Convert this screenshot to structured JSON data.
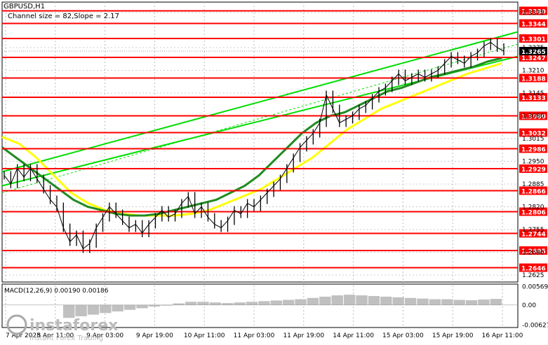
{
  "chart_data": {
    "type": "line",
    "title": "GBPUSD,H1",
    "subtitle": "Channel size = 82,Slope = 2.17",
    "x_tick_labels": [
      "7 Apr 2025",
      "8 Apr 11:00",
      "9 Apr 03:00",
      "9 Apr 19:00",
      "10 Apr 11:00",
      "11 Apr 03:00",
      "11 Apr 19:00",
      "14 Apr 11:00",
      "15 Apr 03:00",
      "15 Apr 19:00",
      "16 Apr 11:00"
    ],
    "y_tick_labels": [
      "1.3375",
      "1.3275",
      "1.3210",
      "1.3145",
      "1.3080",
      "1.3015",
      "1.2950",
      "1.2885",
      "1.2820",
      "1.2755",
      "1.2690",
      "1.2625"
    ],
    "ylim": [
      1.2605,
      1.3405
    ],
    "level_lines": [
      1.338,
      1.3344,
      1.3301,
      1.3247,
      1.3188,
      1.3133,
      1.308,
      1.3032,
      1.2986,
      1.2929,
      1.2866,
      1.2806,
      1.2744,
      1.2695,
      1.2646
    ],
    "level_labels": [
      "1.3380",
      "1.3344",
      "1.3301",
      "1.3247",
      "1.3188",
      "1.3133",
      "1.3080",
      "1.3032",
      "1.2986",
      "1.2929",
      "1.2866",
      "1.2806",
      "1.2744",
      "1.2695",
      "1.2646"
    ],
    "current_price": 1.3265,
    "current_price_label": "1.3265",
    "price_series": [
      1.291,
      1.2885,
      1.293,
      1.2905,
      1.293,
      1.29,
      1.287,
      1.284,
      1.282,
      1.276,
      1.272,
      1.274,
      1.27,
      1.2715,
      1.276,
      1.279,
      1.282,
      1.28,
      1.278,
      1.276,
      1.277,
      1.2745,
      1.277,
      1.279,
      1.281,
      1.279,
      1.28,
      1.283,
      1.285,
      1.28,
      1.282,
      1.279,
      1.277,
      1.276,
      1.278,
      1.281,
      1.28,
      1.283,
      1.282,
      1.284,
      1.286,
      1.288,
      1.29,
      1.293,
      1.296,
      1.299,
      1.301,
      1.303,
      1.306,
      1.314,
      1.31,
      1.306,
      1.307,
      1.308,
      1.31,
      1.311,
      1.313,
      1.315,
      1.316,
      1.318,
      1.32,
      1.318,
      1.319,
      1.32,
      1.319,
      1.32,
      1.321,
      1.323,
      1.325,
      1.324,
      1.323,
      1.325,
      1.326,
      1.328,
      1.329,
      1.3275,
      1.3265
    ],
    "ma_green": [
      1.299,
      1.296,
      1.293,
      1.29,
      1.287,
      1.284,
      1.282,
      1.281,
      1.28,
      1.2795,
      1.2795,
      1.28,
      1.281,
      1.282,
      1.283,
      1.284,
      1.286,
      1.288,
      1.291,
      1.295,
      1.299,
      1.303,
      1.306,
      1.308,
      1.309,
      1.311,
      1.313,
      1.315,
      1.316,
      1.3175,
      1.319,
      1.32,
      1.321,
      1.322,
      1.3235,
      1.3245
    ],
    "ma_yellow": [
      1.302,
      1.3,
      1.296,
      1.291,
      1.286,
      1.283,
      1.281,
      1.28,
      1.2795,
      1.2795,
      1.2795,
      1.28,
      1.281,
      1.283,
      1.285,
      1.287,
      1.29,
      1.293,
      1.296,
      1.3,
      1.304,
      1.307,
      1.31,
      1.312,
      1.314,
      1.316,
      1.318,
      1.32,
      1.3215,
      1.323
    ],
    "channel_upper": [
      1.292,
      1.332
    ],
    "channel_lower": [
      1.288,
      1.325
    ],
    "macd": {
      "label": "MACD(12,26,9) 0.00190 0.00186",
      "y_tick_labels": [
        "0.00569",
        "0.00",
        "-0.00627"
      ],
      "ylim": [
        -0.007,
        0.0065
      ],
      "histogram": [
        -0.004,
        -0.0035,
        -0.003,
        -0.0025,
        -0.002,
        -0.0015,
        -0.001,
        -0.0005,
        0.0,
        0.0005,
        0.001,
        0.001,
        0.0008,
        0.0006,
        0.0008,
        0.001,
        0.0012,
        0.0014,
        0.0016,
        0.0018,
        0.0022,
        0.0026,
        0.003,
        0.0032,
        0.003,
        0.0028,
        0.0026,
        0.0024,
        0.0022,
        0.002,
        0.0018,
        0.0018,
        0.0016,
        0.0015,
        0.0017,
        0.0019
      ]
    },
    "colors": {
      "level": "#ff0000",
      "green_channel": "#00dd00",
      "ma_green": "#228b22",
      "ma_yellow": "#ffff00",
      "price": "#000000",
      "macd": "#c0c0c0"
    }
  },
  "watermark": {
    "brand": "instaforex",
    "tagline": "Instant Forex Trading"
  }
}
